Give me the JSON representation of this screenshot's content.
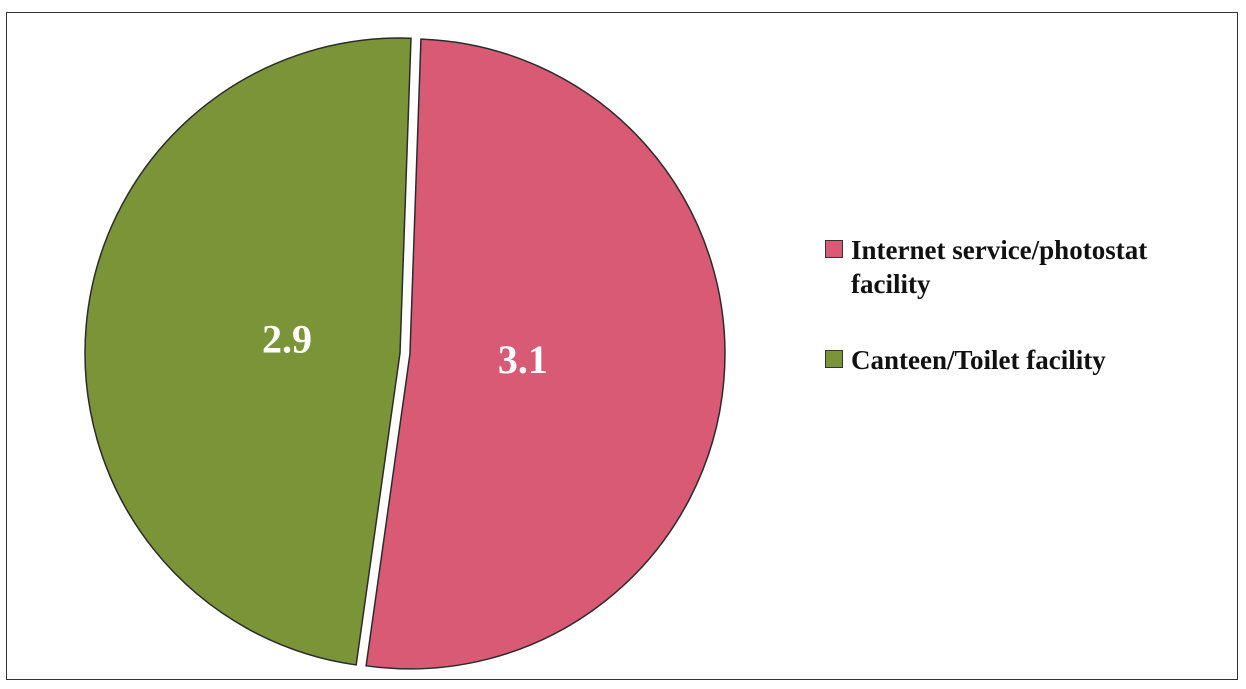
{
  "chart_data": {
    "type": "pie",
    "categories": [
      "Internet service/photostat facility",
      "Canteen/Toilet facility"
    ],
    "values": [
      3.1,
      2.9
    ],
    "data_labels": [
      "3.1",
      "2.9"
    ],
    "colors": [
      "#d95a74",
      "#7b9438"
    ],
    "explode": "Internet service/photostat facility slice separated",
    "legend_position": "right"
  },
  "legend": {
    "items": [
      {
        "label": "Internet service/photostat facility",
        "color": "#d95a74"
      },
      {
        "label": "Canteen/Toilet facility",
        "color": "#7b9438"
      }
    ]
  }
}
